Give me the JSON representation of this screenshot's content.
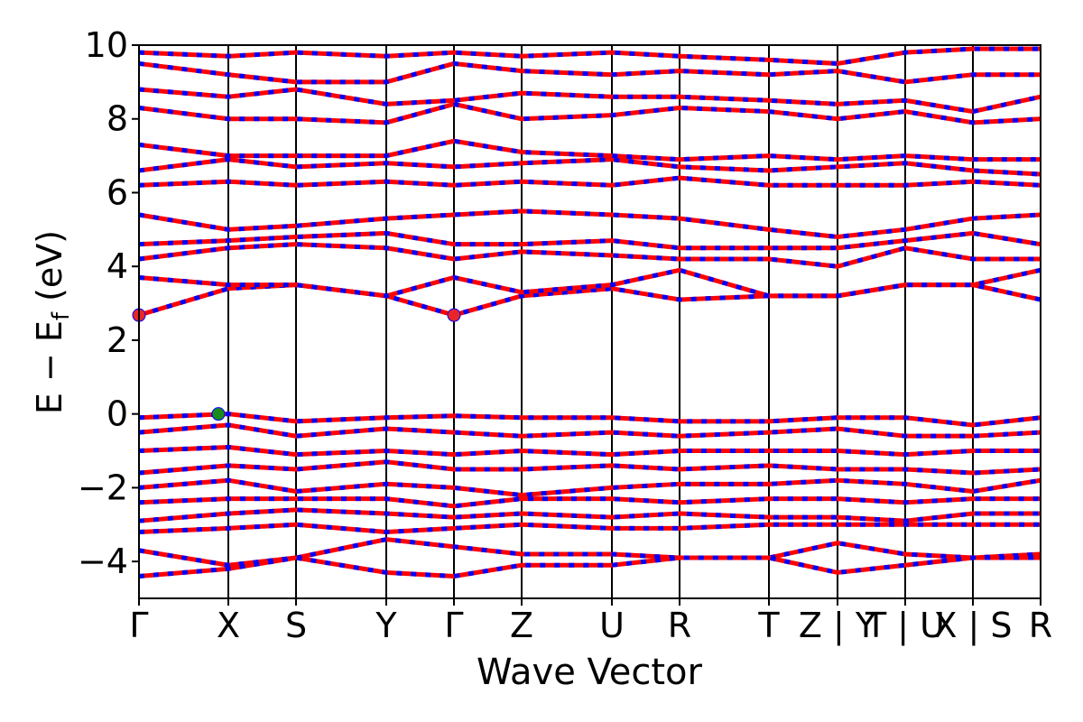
{
  "chart_data": {
    "type": "line",
    "xlabel": "Wave Vector",
    "ylabel": [
      "E − E",
      "f",
      " (eV)"
    ],
    "xlim": [
      0,
      9.99
    ],
    "ylim": [
      -5,
      10
    ],
    "xticks": [
      {
        "value": 0,
        "label": "Γ"
      },
      {
        "value": 0.99,
        "label": "X"
      },
      {
        "value": 1.74,
        "label": "S"
      },
      {
        "value": 2.74,
        "label": "Y"
      },
      {
        "value": 3.49,
        "label": "Γ"
      },
      {
        "value": 4.24,
        "label": "Z"
      },
      {
        "value": 5.24,
        "label": "U"
      },
      {
        "value": 5.99,
        "label": "R"
      },
      {
        "value": 6.98,
        "label": "T"
      },
      {
        "value": 7.74,
        "label": "Z | Y"
      },
      {
        "value": 8.49,
        "label": "T | U"
      },
      {
        "value": 9.24,
        "label": "X | S"
      },
      {
        "value": 9.99,
        "label": "R"
      }
    ],
    "yticks": [
      {
        "value": -4,
        "label": "−4"
      },
      {
        "value": -2,
        "label": "−2"
      },
      0,
      2,
      4,
      6,
      8,
      10
    ],
    "grid_x": true,
    "line_color": "#ff0000",
    "dash_color": "#0000ff",
    "x": [
      0,
      0.99,
      1.74,
      2.74,
      3.49,
      4.24,
      5.24,
      5.99,
      6.98,
      7.74,
      8.49,
      9.24,
      9.99
    ],
    "series": [
      {
        "values": [
          2.68,
          3.4,
          3.5,
          3.2,
          2.68,
          3.2,
          3.4,
          3.1,
          3.2,
          3.2,
          3.5,
          3.5,
          3.1
        ]
      },
      {
        "values": [
          3.7,
          3.5,
          3.5,
          3.2,
          3.7,
          3.3,
          3.5,
          3.9,
          3.2,
          3.2,
          3.5,
          3.5,
          3.9
        ]
      },
      {
        "values": [
          4.2,
          4.5,
          4.6,
          4.5,
          4.2,
          4.4,
          4.3,
          4.2,
          4.2,
          4.0,
          4.5,
          4.2,
          4.2
        ]
      },
      {
        "values": [
          4.6,
          4.7,
          4.8,
          4.9,
          4.6,
          4.6,
          4.7,
          4.5,
          4.5,
          4.5,
          4.7,
          4.9,
          4.6
        ]
      },
      {
        "values": [
          5.4,
          5.0,
          5.1,
          5.3,
          5.4,
          5.5,
          5.4,
          5.3,
          5.0,
          4.8,
          5.0,
          5.3,
          5.4
        ]
      },
      {
        "values": [
          6.2,
          6.3,
          6.2,
          6.3,
          6.2,
          6.3,
          6.2,
          6.4,
          6.2,
          6.2,
          6.2,
          6.3,
          6.2
        ]
      },
      {
        "values": [
          6.6,
          6.9,
          6.7,
          6.8,
          6.7,
          6.8,
          6.9,
          6.7,
          6.6,
          6.7,
          6.8,
          6.6,
          6.5
        ]
      },
      {
        "values": [
          7.3,
          7.0,
          7.0,
          7.0,
          7.4,
          7.1,
          7.0,
          6.9,
          7.0,
          6.9,
          7.0,
          6.9,
          6.9
        ]
      },
      {
        "values": [
          8.3,
          8.0,
          8.0,
          7.9,
          8.4,
          8.0,
          8.1,
          8.3,
          8.2,
          8.0,
          8.2,
          7.9,
          8.0
        ]
      },
      {
        "values": [
          8.8,
          8.6,
          8.8,
          8.4,
          8.5,
          8.7,
          8.6,
          8.6,
          8.5,
          8.4,
          8.5,
          8.2,
          8.6
        ]
      },
      {
        "values": [
          9.5,
          9.2,
          9.0,
          9.0,
          9.5,
          9.3,
          9.2,
          9.3,
          9.2,
          9.3,
          9.0,
          9.2,
          9.2
        ]
      },
      {
        "values": [
          9.8,
          9.7,
          9.8,
          9.7,
          9.8,
          9.7,
          9.8,
          9.7,
          9.6,
          9.5,
          9.8,
          9.9,
          9.9
        ]
      },
      {
        "values": [
          -0.1,
          0,
          -0.2,
          -0.1,
          -0.05,
          -0.1,
          -0.1,
          -0.2,
          -0.2,
          -0.1,
          -0.1,
          -0.3,
          -0.1
        ]
      },
      {
        "values": [
          -0.5,
          -0.3,
          -0.6,
          -0.4,
          -0.5,
          -0.6,
          -0.5,
          -0.6,
          -0.5,
          -0.4,
          -0.6,
          -0.6,
          -0.5
        ]
      },
      {
        "values": [
          -1.0,
          -0.9,
          -1.1,
          -1.0,
          -1.1,
          -1.0,
          -1.1,
          -1.0,
          -1.0,
          -1.0,
          -1.1,
          -1.0,
          -1.0
        ]
      },
      {
        "values": [
          -1.6,
          -1.4,
          -1.5,
          -1.3,
          -1.5,
          -1.5,
          -1.4,
          -1.5,
          -1.4,
          -1.5,
          -1.5,
          -1.6,
          -1.5
        ]
      },
      {
        "values": [
          -2.0,
          -1.8,
          -2.1,
          -1.9,
          -2.0,
          -2.2,
          -2.0,
          -1.9,
          -1.9,
          -1.8,
          -1.9,
          -2.1,
          -1.8
        ]
      },
      {
        "values": [
          -2.4,
          -2.3,
          -2.3,
          -2.3,
          -2.5,
          -2.3,
          -2.3,
          -2.4,
          -2.3,
          -2.3,
          -2.4,
          -2.3,
          -2.3
        ]
      },
      {
        "values": [
          -2.9,
          -2.7,
          -2.6,
          -2.7,
          -2.8,
          -2.7,
          -2.8,
          -2.7,
          -2.8,
          -2.8,
          -2.9,
          -2.7,
          -2.7
        ]
      },
      {
        "values": [
          -3.2,
          -3.1,
          -3.0,
          -3.2,
          -3.1,
          -3.0,
          -3.1,
          -3.1,
          -3.0,
          -3.0,
          -3.0,
          -3.0,
          -3.0
        ]
      },
      {
        "values": [
          -3.7,
          -4.1,
          -3.9,
          -3.4,
          -3.6,
          -3.8,
          -3.8,
          -3.9,
          -3.9,
          -3.5,
          -3.8,
          -3.9,
          -3.8
        ]
      },
      {
        "values": [
          -4.4,
          -4.2,
          -3.9,
          -4.3,
          -4.4,
          -4.1,
          -4.1,
          -3.9,
          -3.9,
          -4.3,
          -4.1,
          -3.9,
          -3.9
        ]
      }
    ],
    "points": [
      {
        "x": 0,
        "y": 2.68,
        "color": "#e8262a"
      },
      {
        "x": 3.49,
        "y": 2.68,
        "color": "#e8262a"
      },
      {
        "x": 0.88,
        "y": 0,
        "color": "#1a8a1a"
      }
    ]
  }
}
